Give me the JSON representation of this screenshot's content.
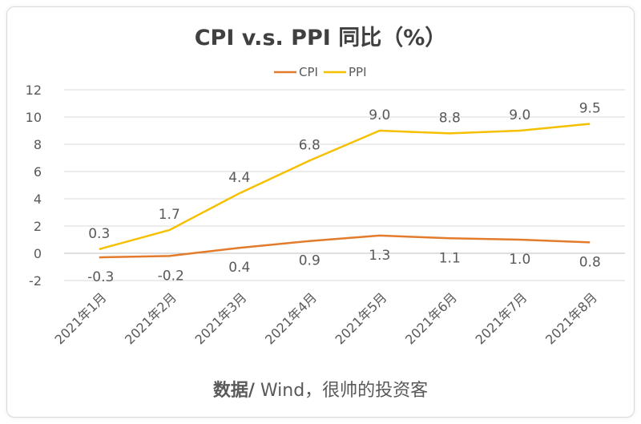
{
  "chart_data": {
    "type": "line",
    "title": "CPI v.s. PPI 同比（%）",
    "xlabel": "",
    "ylabel": "",
    "categories": [
      "2021年1月",
      "2021年2月",
      "2021年3月",
      "2021年4月",
      "2021年5月",
      "2021年6月",
      "2021年7月",
      "2021年8月"
    ],
    "series": [
      {
        "name": "CPI",
        "color": "#e37b2c",
        "values": [
          -0.3,
          -0.2,
          0.4,
          0.9,
          1.3,
          1.1,
          1.0,
          0.8
        ],
        "labels": [
          "-0.3",
          "-0.2",
          "0.4",
          "0.9",
          "1.3",
          "1.1",
          "1.0",
          "0.8"
        ],
        "label_position": "below"
      },
      {
        "name": "PPI",
        "color": "#f5c000",
        "values": [
          0.3,
          1.7,
          4.4,
          6.8,
          9.0,
          8.8,
          9.0,
          9.5
        ],
        "labels": [
          "0.3",
          "1.7",
          "4.4",
          "6.8",
          "9.0",
          "8.8",
          "9.0",
          "9.5"
        ],
        "label_position": "above"
      }
    ],
    "ylim": [
      -2,
      12
    ],
    "yticks": [
      -2,
      0,
      2,
      4,
      6,
      8,
      10,
      12
    ],
    "ytick_labels": [
      "-2",
      "0",
      "2",
      "4",
      "6",
      "8",
      "10",
      "12"
    ],
    "grid": true,
    "legend_position": "top-center"
  },
  "source": {
    "prefix": "数据/",
    "text": " Wind，很帅的投资客"
  }
}
